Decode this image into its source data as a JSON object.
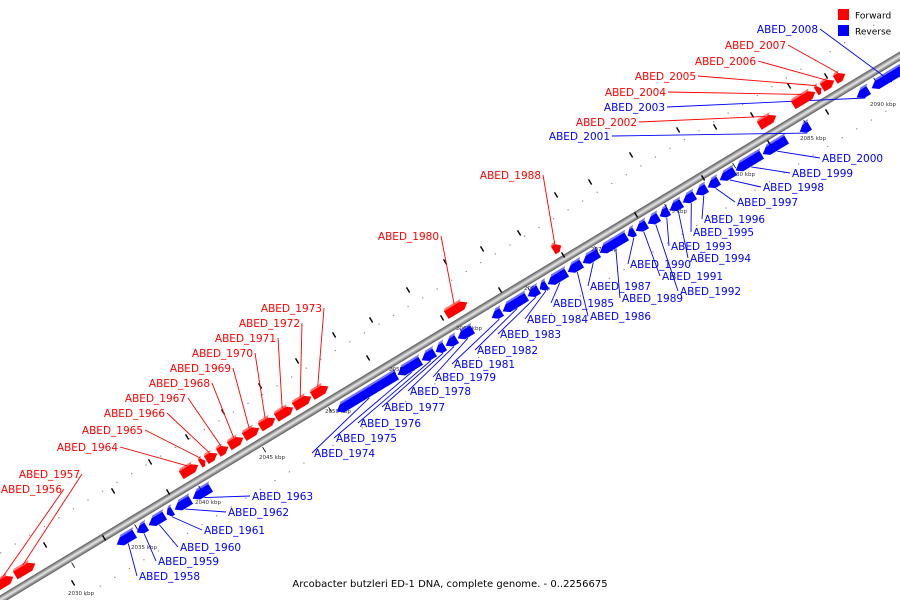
{
  "caption": "Arcobacter butzleri ED-1 DNA, complete genome. - 0..2256675",
  "legend": [
    {
      "label": "Forward",
      "color": "#ff0000"
    },
    {
      "label": "Reverse",
      "color": "#0000ff"
    }
  ],
  "kbp_ticks": [
    "2030 kbp",
    "2035 kbp",
    "2040 kbp",
    "2045 kbp",
    "2050 kbp",
    "2055 kbp",
    "2060 kbp",
    "2065 kbp",
    "2070 kbp",
    "2075 kbp",
    "2080 kbp",
    "2085 kbp",
    "2090 kbp"
  ],
  "genes": [
    {
      "name": "ABED_1956",
      "strand": "forward"
    },
    {
      "name": "ABED_1957",
      "strand": "forward"
    },
    {
      "name": "ABED_1958",
      "strand": "reverse"
    },
    {
      "name": "ABED_1959",
      "strand": "reverse"
    },
    {
      "name": "ABED_1960",
      "strand": "reverse"
    },
    {
      "name": "ABED_1961",
      "strand": "reverse"
    },
    {
      "name": "ABED_1962",
      "strand": "reverse"
    },
    {
      "name": "ABED_1963",
      "strand": "reverse"
    },
    {
      "name": "ABED_1964",
      "strand": "forward"
    },
    {
      "name": "ABED_1965",
      "strand": "forward"
    },
    {
      "name": "ABED_1966",
      "strand": "forward"
    },
    {
      "name": "ABED_1967",
      "strand": "forward"
    },
    {
      "name": "ABED_1968",
      "strand": "forward"
    },
    {
      "name": "ABED_1969",
      "strand": "forward"
    },
    {
      "name": "ABED_1970",
      "strand": "forward"
    },
    {
      "name": "ABED_1971",
      "strand": "forward"
    },
    {
      "name": "ABED_1972",
      "strand": "forward"
    },
    {
      "name": "ABED_1973",
      "strand": "forward"
    },
    {
      "name": "ABED_1974",
      "strand": "reverse"
    },
    {
      "name": "ABED_1975",
      "strand": "reverse"
    },
    {
      "name": "ABED_1976",
      "strand": "reverse"
    },
    {
      "name": "ABED_1977",
      "strand": "reverse"
    },
    {
      "name": "ABED_1978",
      "strand": "reverse"
    },
    {
      "name": "ABED_1979",
      "strand": "reverse"
    },
    {
      "name": "ABED_1980",
      "strand": "forward"
    },
    {
      "name": "ABED_1981",
      "strand": "reverse"
    },
    {
      "name": "ABED_1982",
      "strand": "reverse"
    },
    {
      "name": "ABED_1983",
      "strand": "reverse"
    },
    {
      "name": "ABED_1984",
      "strand": "reverse"
    },
    {
      "name": "ABED_1985",
      "strand": "reverse"
    },
    {
      "name": "ABED_1986",
      "strand": "reverse"
    },
    {
      "name": "ABED_1987",
      "strand": "reverse"
    },
    {
      "name": "ABED_1988",
      "strand": "forward"
    },
    {
      "name": "ABED_1989",
      "strand": "reverse"
    },
    {
      "name": "ABED_1990",
      "strand": "reverse"
    },
    {
      "name": "ABED_1991",
      "strand": "reverse"
    },
    {
      "name": "ABED_1992",
      "strand": "reverse"
    },
    {
      "name": "ABED_1993",
      "strand": "reverse"
    },
    {
      "name": "ABED_1994",
      "strand": "reverse"
    },
    {
      "name": "ABED_1995",
      "strand": "reverse"
    },
    {
      "name": "ABED_1996",
      "strand": "reverse"
    },
    {
      "name": "ABED_1997",
      "strand": "reverse"
    },
    {
      "name": "ABED_1998",
      "strand": "reverse"
    },
    {
      "name": "ABED_1999",
      "strand": "reverse"
    },
    {
      "name": "ABED_2000",
      "strand": "reverse"
    },
    {
      "name": "ABED_2001",
      "strand": "reverse"
    },
    {
      "name": "ABED_2002",
      "strand": "forward"
    },
    {
      "name": "ABED_2003",
      "strand": "reverse"
    },
    {
      "name": "ABED_2004",
      "strand": "forward"
    },
    {
      "name": "ABED_2005",
      "strand": "forward"
    },
    {
      "name": "ABED_2006",
      "strand": "forward"
    },
    {
      "name": "ABED_2007",
      "strand": "forward"
    },
    {
      "name": "ABED_2008",
      "strand": "reverse"
    }
  ]
}
